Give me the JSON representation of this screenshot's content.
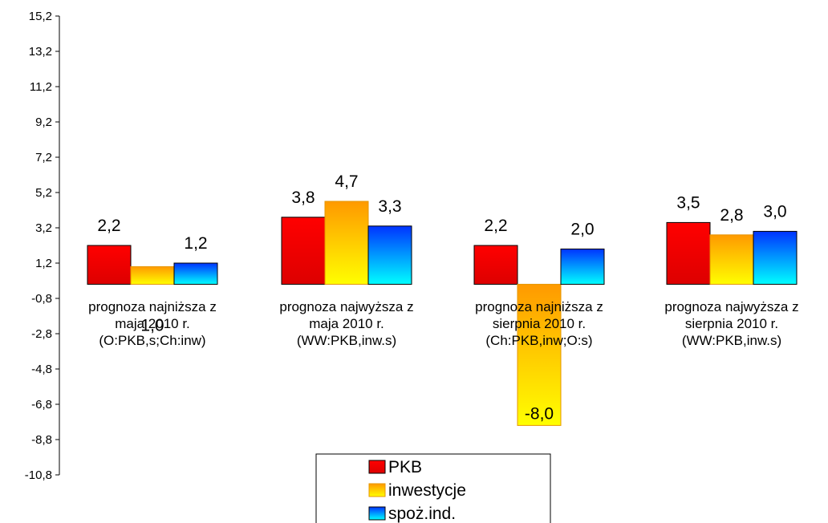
{
  "chart_data": {
    "type": "bar",
    "title": "",
    "xlabel": "",
    "ylabel": "",
    "ylim": [
      -10.8,
      15.2
    ],
    "yticks": [
      "15,2",
      "13,2",
      "11,2",
      "9,2",
      "7,2",
      "5,2",
      "3,2",
      "1,2",
      "-0,8",
      "-2,8",
      "-4,8",
      "-6,8",
      "-8,8",
      "-10,8"
    ],
    "ytick_values": [
      15.2,
      13.2,
      11.2,
      9.2,
      7.2,
      5.2,
      3.2,
      1.2,
      -0.8,
      -2.8,
      -4.8,
      -6.8,
      -8.8,
      -10.8
    ],
    "categories": [
      [
        "prognoza najniższa z",
        "maja 2010 r.",
        "(O:PKB,s;Ch:inw)"
      ],
      [
        "prognoza najwyższa z",
        "maja 2010 r.",
        "(WW:PKB,inw.s)"
      ],
      [
        "prognoza najniższa z",
        "sierpnia 2010 r.",
        "(Ch:PKB,inw;O:s)"
      ],
      [
        "prognoza najwyższa z",
        "sierpnia 2010 r.",
        "(WW:PKB,inw.s)"
      ]
    ],
    "series": [
      {
        "name": "PKB",
        "values": [
          2.2,
          3.8,
          2.2,
          3.5
        ],
        "labels": [
          "2,2",
          "3,8",
          "2,2",
          "3,5"
        ],
        "color_top": "#ff0000",
        "color_bottom": "#dd0000"
      },
      {
        "name": "inwestycje",
        "values": [
          1.0,
          4.7,
          -8.0,
          2.8
        ],
        "labels": [
          "1,0",
          "4,7",
          "-8,0",
          "2,8"
        ],
        "color_top": "#ff9900",
        "color_bottom": "#ffff00"
      },
      {
        "name": "spoż.ind.",
        "values": [
          1.2,
          3.3,
          2.0,
          3.0
        ],
        "labels": [
          "1,2",
          "3,3",
          "2,0",
          "3,0"
        ],
        "color_top": "#0033ff",
        "color_bottom": "#00ffff"
      }
    ],
    "legend_position": "bottom",
    "grid": false
  }
}
